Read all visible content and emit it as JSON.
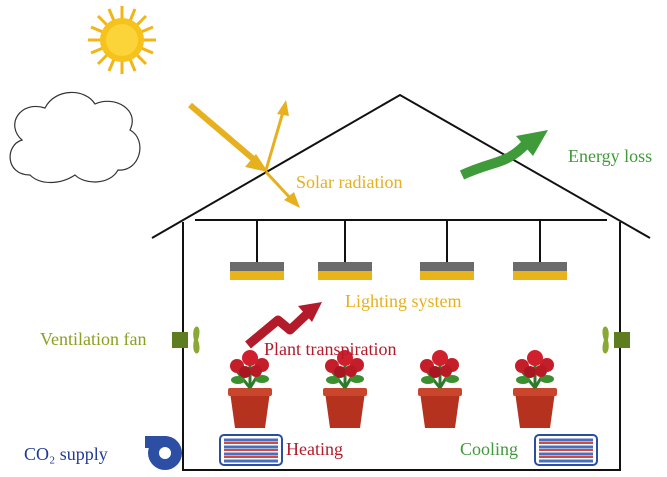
{
  "labels": {
    "solar_radiation": "Solar radiation",
    "energy_loss": "Energy loss",
    "lighting_system": "Lighting system",
    "ventilation_fan": "Ventilation fan",
    "plant_transpiration": "Plant transpiration",
    "co2_supply": "CO₂ supply",
    "heating": "Heating",
    "cooling": "Cooling"
  }
}
